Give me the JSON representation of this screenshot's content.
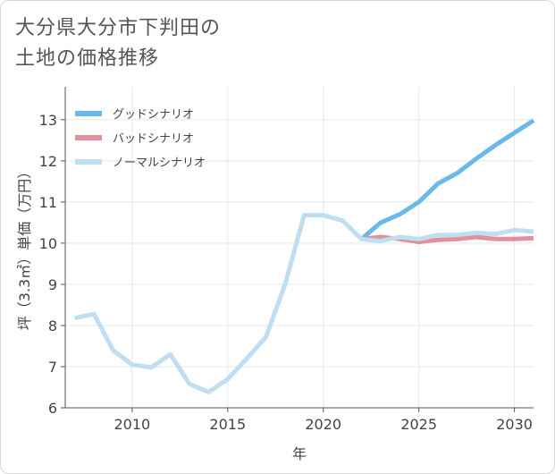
{
  "page": {
    "title_line1": "大分県大分市下判田の",
    "title_line2": "土地の価格推移"
  },
  "chart_data": {
    "type": "line",
    "title": "大分県大分市下判田の土地の価格推移",
    "xlabel": "年",
    "ylabel": "坪（3.3㎡）単価（万円）",
    "xlim": [
      2006.5,
      2031
    ],
    "ylim": [
      6,
      13.8
    ],
    "x_ticks": [
      2010,
      2015,
      2020,
      2025,
      2030
    ],
    "y_ticks": [
      6,
      7,
      8,
      9,
      10,
      11,
      12,
      13
    ],
    "grid": true,
    "legend_position": "top-left",
    "series": [
      {
        "name": "グッドシナリオ",
        "color": "#6bb9ea",
        "x": [
          2022,
          2023,
          2024,
          2025,
          2026,
          2027,
          2028,
          2029,
          2030,
          2031
        ],
        "values": [
          10.1,
          10.5,
          10.7,
          11.0,
          11.45,
          11.7,
          12.05,
          12.38,
          12.68,
          12.98
        ]
      },
      {
        "name": "バッドシナリオ",
        "color": "#e0919c",
        "x": [
          2022,
          2023,
          2024,
          2025,
          2026,
          2027,
          2028,
          2029,
          2030,
          2031
        ],
        "values": [
          10.1,
          10.15,
          10.1,
          10.03,
          10.08,
          10.1,
          10.15,
          10.1,
          10.1,
          10.12
        ]
      },
      {
        "name": "ノーマルシナリオ",
        "color": "#bfdff0",
        "x": [
          2007,
          2008,
          2009,
          2010,
          2011,
          2012,
          2013,
          2014,
          2015,
          2016,
          2017,
          2018,
          2019,
          2020,
          2021,
          2022,
          2023,
          2024,
          2025,
          2026,
          2027,
          2028,
          2029,
          2030,
          2031
        ],
        "values": [
          8.18,
          8.28,
          7.4,
          7.05,
          6.98,
          7.3,
          6.58,
          6.38,
          6.7,
          7.2,
          7.72,
          9.0,
          10.68,
          10.68,
          10.55,
          10.1,
          10.05,
          10.15,
          10.1,
          10.2,
          10.2,
          10.25,
          10.22,
          10.32,
          10.28
        ]
      }
    ]
  }
}
